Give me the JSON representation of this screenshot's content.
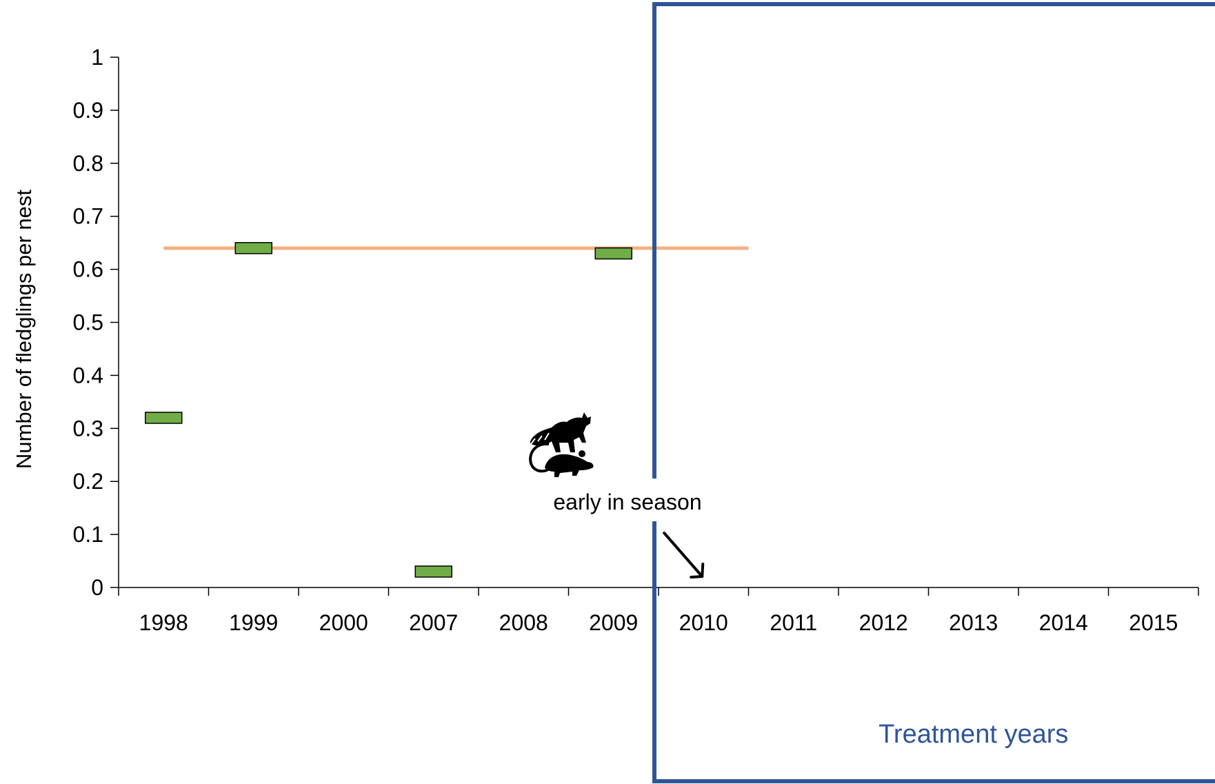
{
  "chart_data": {
    "type": "scatter",
    "marker": "box",
    "categories": [
      "1998",
      "1999",
      "2000",
      "2007",
      "2008",
      "2009",
      "2010",
      "2011",
      "2012",
      "2013",
      "2014",
      "2015"
    ],
    "yticks": [
      "0",
      "0.1",
      "0.2",
      "0.3",
      "0.4",
      "0.5",
      "0.6",
      "0.7",
      "0.8",
      "0.9",
      "1"
    ],
    "ylabel": "Number of fledglings per nest",
    "xlabel": "",
    "ylim": [
      0,
      1
    ],
    "grid": false,
    "series": [
      {
        "points": [
          {
            "x": "1998",
            "y": 0.32
          },
          {
            "x": "1999",
            "y": 0.64
          },
          {
            "x": "2007",
            "y": 0.03
          },
          {
            "x": "2009",
            "y": 0.63
          }
        ],
        "color": "#70ad47"
      }
    ],
    "reference_line": {
      "y": 0.64,
      "from": "1998",
      "to": "2010",
      "color": "#f4b183"
    },
    "annotations": {
      "event_label": "early in season",
      "event_icons": [
        "raccoon-icon",
        "rat-icon"
      ],
      "arrow_target": "2010"
    },
    "treatment_region": {
      "label": "Treatment years",
      "start_after": "2009",
      "color": "#2f5597"
    }
  }
}
